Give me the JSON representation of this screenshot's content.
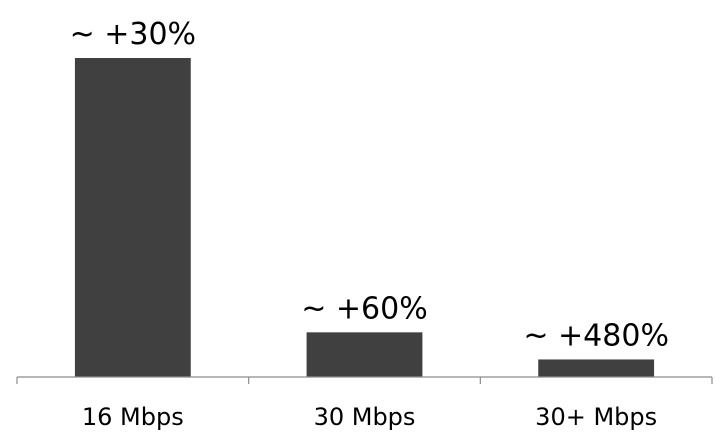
{
  "chart_data": {
    "type": "bar",
    "categories": [
      "16 Mbps",
      "30 Mbps",
      "30+ Mbps"
    ],
    "values": [
      100,
      14,
      5.5
    ],
    "data_labels": [
      "~ +30%",
      "~ +60%",
      "~ +480%"
    ],
    "title": "",
    "xlabel": "",
    "ylabel": "",
    "ylim": [
      0,
      100
    ],
    "grid": false,
    "legend": "none",
    "bar_color": "#404040",
    "axis_color": "#8c8c8c"
  }
}
